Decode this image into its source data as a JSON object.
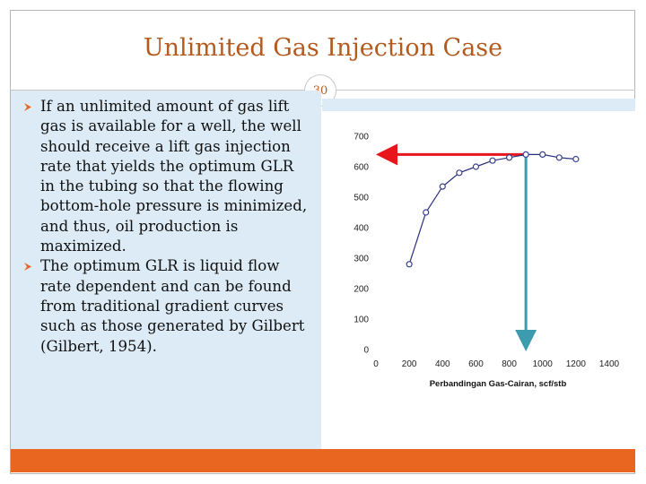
{
  "slide": {
    "title": "Unlimited Gas Injection Case",
    "slide_number": "30",
    "bullets": [
      "If an unlimited amount of gas lift gas is available for a well, the well should receive a lift gas injection rate that yields the optimum GLR in the tubing so that the flowing bottom-hole pressure is minimized, and thus, oil production is maximized.",
      "The optimum GLR is liquid flow rate dependent and can be found from traditional gradient curves such as those generated by Gilbert (Gilbert, 1954)."
    ]
  },
  "colors": {
    "title": "#b35a1f",
    "accent_bar": "#e8661f",
    "panel": "#dcebf5",
    "marker": "#3a3f8f",
    "arrow_horizontal": "#e8151b",
    "arrow_vertical": "#3d9bb0"
  },
  "icons": {
    "bullet": "chevron-bullet-icon"
  },
  "chart_data": {
    "type": "line",
    "title": "",
    "xlabel": "Perbandingan Gas-Cairan, scf/stb",
    "ylabel": "",
    "xlim": [
      0,
      1400
    ],
    "ylim": [
      0,
      700
    ],
    "x_ticks": [
      "0",
      "200",
      "400",
      "600",
      "800",
      "1000",
      "1200",
      "1400"
    ],
    "y_ticks": [
      "0",
      "100",
      "200",
      "300",
      "400",
      "500",
      "600",
      "700"
    ],
    "x_tick_values": [
      0,
      200,
      400,
      600,
      800,
      1000,
      1200,
      1400
    ],
    "y_tick_values": [
      0,
      100,
      200,
      300,
      400,
      500,
      600,
      700
    ],
    "grid": false,
    "series": [
      {
        "x": [
          200,
          300,
          400,
          500,
          600,
          700,
          800,
          900,
          1000,
          1100,
          1200
        ],
        "values": [
          280,
          450,
          535,
          580,
          600,
          620,
          630,
          640,
          640,
          630,
          625
        ]
      }
    ],
    "annotations": {
      "optimum_glr": 900,
      "optimum_rate": 640
    }
  }
}
